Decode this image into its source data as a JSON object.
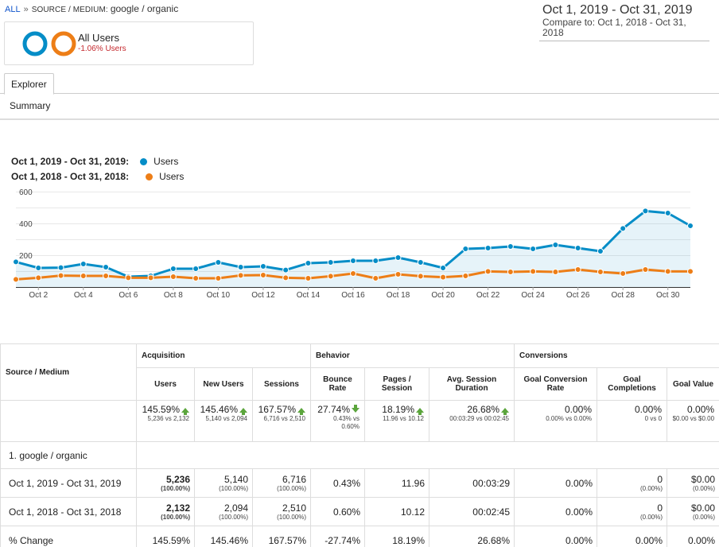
{
  "breadcrumb": {
    "all": "ALL",
    "sep": "»",
    "dimension": "SOURCE / MEDIUM:",
    "value": "google / organic"
  },
  "date_range": {
    "current": "Oct 1, 2019 - Oct 31, 2019",
    "compare": "Compare to: Oct 1, 2018 - Oct 31, 2018"
  },
  "segment": {
    "name": "All Users",
    "delta": "-1.06% Users",
    "ring_colors": [
      "#058dc7",
      "#ed7e17"
    ]
  },
  "tabs": {
    "explorer": "Explorer",
    "summary": "Summary"
  },
  "legend": [
    {
      "range": "Oct 1, 2019 - Oct 31, 2019:",
      "metric": "Users",
      "color": "#058dc7"
    },
    {
      "range": "Oct 1, 2018 - Oct 31, 2018:",
      "metric": "Users",
      "color": "#ed7e17"
    }
  ],
  "chart_data": {
    "type": "line",
    "x": [
      "Oct 1",
      "Oct 2",
      "Oct 3",
      "Oct 4",
      "Oct 5",
      "Oct 6",
      "Oct 7",
      "Oct 8",
      "Oct 9",
      "Oct 10",
      "Oct 11",
      "Oct 12",
      "Oct 13",
      "Oct 14",
      "Oct 15",
      "Oct 16",
      "Oct 17",
      "Oct 18",
      "Oct 19",
      "Oct 20",
      "Oct 21",
      "Oct 22",
      "Oct 23",
      "Oct 24",
      "Oct 25",
      "Oct 26",
      "Oct 27",
      "Oct 28",
      "Oct 29",
      "Oct 30",
      "Oct 31"
    ],
    "tick_labels": [
      "Oct 2",
      "Oct 4",
      "Oct 6",
      "Oct 8",
      "Oct 10",
      "Oct 12",
      "Oct 14",
      "Oct 16",
      "Oct 18",
      "Oct 20",
      "Oct 22",
      "Oct 24",
      "Oct 26",
      "Oct 28",
      "Oct 30"
    ],
    "y_ticks": [
      "600",
      "400",
      "200"
    ],
    "ylim": [
      0,
      600
    ],
    "series": [
      {
        "name": "Users",
        "color": "#058dc7",
        "fill": true,
        "values": [
          158,
          120,
          122,
          145,
          125,
          65,
          70,
          115,
          115,
          155,
          125,
          130,
          107,
          150,
          155,
          165,
          165,
          185,
          155,
          120,
          240,
          245,
          255,
          240,
          265,
          245,
          225,
          368,
          478,
          465,
          385
        ]
      },
      {
        "name": "Users",
        "color": "#ed7e17",
        "fill": false,
        "values": [
          48,
          58,
          72,
          70,
          70,
          58,
          58,
          65,
          55,
          55,
          73,
          75,
          58,
          55,
          68,
          85,
          55,
          80,
          68,
          62,
          70,
          98,
          95,
          98,
          95,
          110,
          95,
          85,
          110,
          98,
          98
        ]
      }
    ],
    "grid": true
  },
  "table": {
    "corner": "Source / Medium",
    "groups": [
      "Acquisition",
      "Behavior",
      "Conversions"
    ],
    "columns": [
      "Users",
      "New Users",
      "Sessions",
      "Bounce Rate",
      "Pages / Session",
      "Avg. Session Duration",
      "Goal Conversion Rate",
      "Goal Completions",
      "Goal Value"
    ],
    "totals": [
      {
        "big": "145.59%",
        "arrow": "up",
        "sm": "5,236 vs 2,132"
      },
      {
        "big": "145.46%",
        "arrow": "up",
        "sm": "5,140 vs 2,094"
      },
      {
        "big": "167.57%",
        "arrow": "up",
        "sm": "6,716 vs 2,510"
      },
      {
        "big": "27.74%",
        "arrow": "down",
        "sm": "0.43% vs 0.60%"
      },
      {
        "big": "18.19%",
        "arrow": "up",
        "sm": "11.96 vs 10.12"
      },
      {
        "big": "26.68%",
        "arrow": "up",
        "sm": "00:03:29 vs 00:02:45"
      },
      {
        "big": "0.00%",
        "arrow": "",
        "sm": "0.00% vs 0.00%"
      },
      {
        "big": "0.00%",
        "arrow": "",
        "sm": "0 vs 0"
      },
      {
        "big": "0.00%",
        "arrow": "",
        "sm": "$0.00 vs $0.00"
      }
    ],
    "row_label": "1.  google / organic",
    "rows": [
      {
        "label": "Oct 1, 2019 - Oct 31, 2019",
        "cells": [
          {
            "v": "5,236",
            "p": "(100.00%)",
            "b": true
          },
          {
            "v": "5,140",
            "p": "(100.00%)"
          },
          {
            "v": "6,716",
            "p": "(100.00%)"
          },
          {
            "v": "0.43%"
          },
          {
            "v": "11.96"
          },
          {
            "v": "00:03:29"
          },
          {
            "v": "0.00%"
          },
          {
            "v": "0",
            "p": "(0.00%)"
          },
          {
            "v": "$0.00",
            "p": "(0.00%)"
          }
        ]
      },
      {
        "label": "Oct 1, 2018 - Oct 31, 2018",
        "cells": [
          {
            "v": "2,132",
            "p": "(100.00%)",
            "b": true
          },
          {
            "v": "2,094",
            "p": "(100.00%)"
          },
          {
            "v": "2,510",
            "p": "(100.00%)"
          },
          {
            "v": "0.60%"
          },
          {
            "v": "10.12"
          },
          {
            "v": "00:02:45"
          },
          {
            "v": "0.00%"
          },
          {
            "v": "0",
            "p": "(0.00%)"
          },
          {
            "v": "$0.00",
            "p": "(0.00%)"
          }
        ]
      },
      {
        "label": "% Change",
        "cells": [
          {
            "v": "145.59%"
          },
          {
            "v": "145.46%"
          },
          {
            "v": "167.57%"
          },
          {
            "v": "-27.74%"
          },
          {
            "v": "18.19%"
          },
          {
            "v": "26.68%"
          },
          {
            "v": "0.00%"
          },
          {
            "v": "0.00%"
          },
          {
            "v": "0.00%"
          }
        ]
      }
    ]
  }
}
